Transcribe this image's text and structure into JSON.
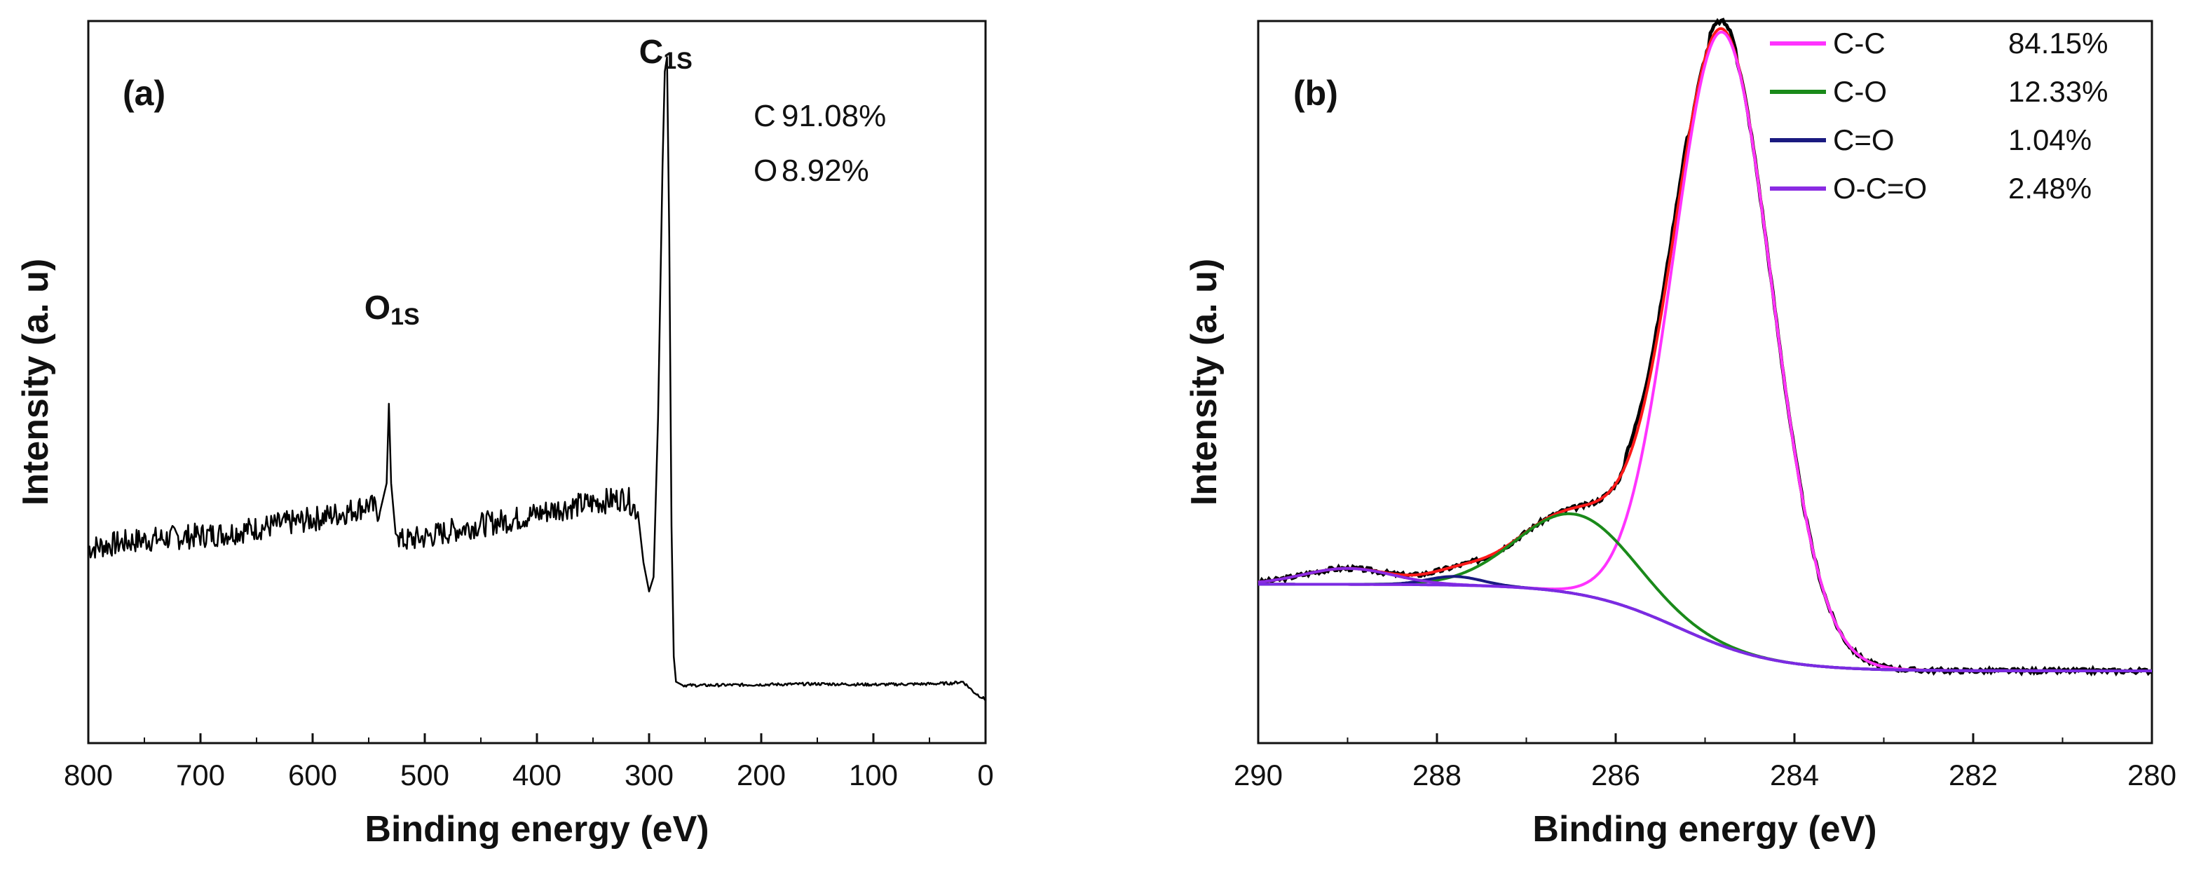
{
  "chart_data": [
    {
      "panel": "(a)",
      "type": "line",
      "xlabel": "Binding energy (eV)",
      "ylabel": "Intensity (a. u)",
      "xlim": [
        800,
        0
      ],
      "x_reversed": true,
      "xticks": [
        800,
        700,
        600,
        500,
        400,
        300,
        200,
        100,
        0
      ],
      "grid": false,
      "yticks_shown": false,
      "series": [
        {
          "color": "#000000",
          "x": [
            800,
            760,
            720,
            680,
            640,
            600,
            570,
            550,
            540,
            534,
            532,
            530,
            526,
            520,
            500,
            460,
            420,
            380,
            340,
            320,
            310,
            305,
            300,
            296,
            292,
            288,
            286,
            284,
            282,
            280,
            278,
            276,
            270,
            250,
            200,
            150,
            100,
            50,
            30,
            20,
            10,
            0
          ],
          "y": [
            0.27,
            0.28,
            0.285,
            0.29,
            0.3,
            0.31,
            0.32,
            0.33,
            0.32,
            0.36,
            0.47,
            0.36,
            0.29,
            0.28,
            0.285,
            0.3,
            0.31,
            0.325,
            0.335,
            0.34,
            0.32,
            0.25,
            0.21,
            0.23,
            0.45,
            0.8,
            0.93,
            0.95,
            0.7,
            0.3,
            0.12,
            0.085,
            0.08,
            0.08,
            0.081,
            0.082,
            0.081,
            0.082,
            0.083,
            0.085,
            0.07,
            0.06
          ]
        }
      ],
      "peak_labels": [
        {
          "element": "O",
          "subscript": "1S",
          "x": 532
        },
        {
          "element": "C",
          "subscript": "1S",
          "x": 284
        }
      ],
      "annotations": [
        {
          "element": "C",
          "value": "91.08%"
        },
        {
          "element": "O",
          "value": "8.92%"
        }
      ]
    },
    {
      "panel": "(b)",
      "type": "line",
      "xlabel": "Binding energy (eV)",
      "ylabel": "Intensity (a. u)",
      "xlim": [
        290,
        280
      ],
      "x_reversed": true,
      "xticks": [
        290,
        288,
        286,
        284,
        282,
        280
      ],
      "grid": false,
      "yticks_shown": false,
      "baseline": {
        "low": 0.1,
        "high": 0.22,
        "center": 285.3,
        "width": 0.55
      },
      "components": [
        {
          "name": "C-C",
          "percent": "84.15%",
          "color": "#ff33ff",
          "center": 284.8,
          "sigma": 0.55,
          "height": 0.85
        },
        {
          "name": "C-O",
          "percent": "12.33%",
          "color": "#1a8a1a",
          "center": 286.45,
          "sigma": 0.65,
          "height": 0.11
        },
        {
          "name": "C=O",
          "percent": "1.04%",
          "color": "#1a1a80",
          "center": 287.8,
          "sigma": 0.3,
          "height": 0.012
        },
        {
          "name": "O-C=O",
          "percent": "2.48%",
          "color": "#8a2be2",
          "center": 289.0,
          "sigma": 0.5,
          "height": 0.022
        }
      ],
      "envelope_color": "#ff1a1a",
      "raw_color": "#000000"
    }
  ]
}
